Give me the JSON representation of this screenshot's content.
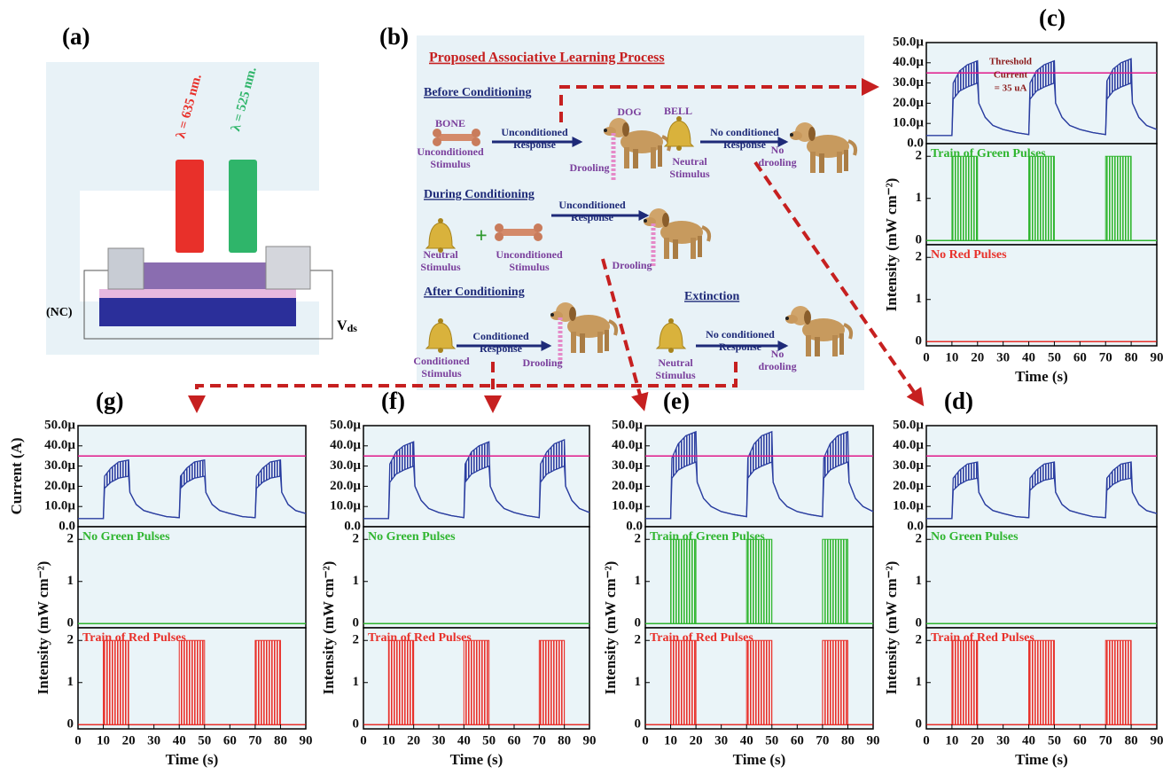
{
  "panel_labels": {
    "a": "(a)",
    "b": "(b)"
  },
  "schematic": {
    "wavelength_red": "λ = 635 nm.",
    "wavelength_green": "λ = 525 nm.",
    "nc_label": "(NC)",
    "v_label": "V",
    "v_subscript": "ds"
  },
  "diagram": {
    "title": "Proposed Associative Learning Process",
    "items": [
      [
        "Before Conditioning"
      ],
      [
        "BONE"
      ],
      [
        "Unconditioned",
        "Stimulus"
      ],
      [
        "Unconditioned",
        "Response"
      ],
      [
        "DOG"
      ],
      [
        "Drooling"
      ],
      [
        "BELL"
      ],
      [
        "Neutral",
        "Stimulus"
      ],
      [
        "No conditioned",
        "Response"
      ],
      [
        "No",
        "drooling"
      ],
      [
        "During Conditioning"
      ],
      [
        "Neutral",
        "Stimulus"
      ],
      [
        "+"
      ],
      [
        "Unconditioned",
        "Stimulus"
      ],
      [
        "Unconditioned",
        "Response"
      ],
      [
        "Drooling"
      ],
      [
        "After Conditioning"
      ],
      [
        "Conditioned",
        "Stimulus"
      ],
      [
        "Conditioned",
        "Response"
      ],
      [
        "Drooling"
      ],
      [
        "Extinction"
      ],
      [
        "Neutral",
        "Stimulus"
      ],
      [
        "No conditioned",
        "Response"
      ],
      [
        "No",
        "drooling"
      ]
    ]
  },
  "chart_data": [
    {
      "type": "pulse-stack",
      "label": "(c)",
      "xlim": [
        0,
        90
      ],
      "xticks": [
        0,
        10,
        20,
        30,
        40,
        50,
        60,
        70,
        80,
        90
      ],
      "xlabel": "Time (s)",
      "x": [
        0,
        10,
        10.5,
        13,
        16,
        20,
        20.5,
        23,
        26,
        30,
        35,
        40,
        40.5,
        43,
        46,
        50,
        50.5,
        53,
        56,
        60,
        65,
        70,
        70.5,
        73,
        76,
        80,
        80.5,
        83,
        86,
        90
      ],
      "current": {
        "color": "#2b3ea0",
        "ylim": [
          0,
          50
        ],
        "yticks": [
          {
            "value": 0,
            "label": "0.0"
          },
          {
            "value": 10,
            "label": "10.0µ"
          },
          {
            "value": 20,
            "label": "20.0µ"
          },
          {
            "value": 30,
            "label": "30.0µ"
          },
          {
            "value": 40,
            "label": "40.0µ"
          },
          {
            "value": 50,
            "label": "50.0µ"
          }
        ],
        "upper": [
          4,
          4,
          30,
          36,
          39,
          41,
          20,
          13,
          9,
          7,
          5.5,
          4.5,
          30,
          36,
          39,
          41,
          20,
          13,
          9,
          7,
          5.5,
          4.5,
          31,
          37,
          40,
          42,
          20,
          13,
          9,
          7
        ],
        "lower": [
          4,
          4,
          22,
          26,
          28,
          30,
          20,
          13,
          9,
          7,
          5.5,
          4.5,
          22,
          26,
          28,
          30,
          20,
          13,
          9,
          7,
          5.5,
          4.5,
          22,
          26,
          28,
          30,
          20,
          13,
          9,
          7
        ],
        "threshold": 35,
        "threshold_color": "#e0198a",
        "annotation": [
          "Threshold",
          "Current",
          "= 35 uA"
        ]
      },
      "intensity_ylim": [
        -0.1,
        2.3
      ],
      "intensity_yticks": [
        0,
        1,
        2
      ],
      "intensity_label": "Intensity (mW cm⁻²)",
      "green": {
        "label": "Train of Green Pulses",
        "color": "#2fb52f",
        "amplitude": 2,
        "baseline": 0,
        "windows": [
          [
            10,
            20
          ],
          [
            40,
            50
          ],
          [
            70,
            80
          ]
        ]
      },
      "red": {
        "label": "No Red Pulses",
        "color": "#e8302a",
        "amplitude": 2,
        "baseline": 0,
        "windows": []
      }
    },
    {
      "type": "pulse-stack",
      "label": "(d)",
      "xlim": [
        0,
        90
      ],
      "xticks": [
        0,
        10,
        20,
        30,
        40,
        50,
        60,
        70,
        80,
        90
      ],
      "xlabel": "Time (s)",
      "x": [
        0,
        10,
        10.5,
        13,
        16,
        20,
        20.5,
        23,
        26,
        30,
        35,
        40,
        40.5,
        43,
        46,
        50,
        50.5,
        53,
        56,
        60,
        65,
        70,
        70.5,
        73,
        76,
        80,
        80.5,
        83,
        86,
        90
      ],
      "current": {
        "color": "#2b3ea0",
        "ylim": [
          0,
          50
        ],
        "yticks": [
          {
            "value": 0,
            "label": "0.0"
          },
          {
            "value": 10,
            "label": "10.0µ"
          },
          {
            "value": 20,
            "label": "20.0µ"
          },
          {
            "value": 30,
            "label": "30.0µ"
          },
          {
            "value": 40,
            "label": "40.0µ"
          },
          {
            "value": 50,
            "label": "50.0µ"
          }
        ],
        "upper": [
          4,
          4,
          24,
          28,
          31,
          32,
          17,
          11,
          8,
          6.5,
          5,
          4.5,
          24,
          28,
          31,
          32,
          17,
          11,
          8,
          6.5,
          5,
          4.5,
          24,
          28,
          31,
          32,
          17,
          11,
          8,
          6.5
        ],
        "lower": [
          4,
          4,
          18,
          21,
          23,
          24,
          17,
          11,
          8,
          6.5,
          5,
          4.5,
          18,
          21,
          23,
          24,
          17,
          11,
          8,
          6.5,
          5,
          4.5,
          18,
          21,
          23,
          24,
          17,
          11,
          8,
          6.5
        ],
        "threshold": 35,
        "threshold_color": "#e0198a"
      },
      "intensity_ylim": [
        -0.1,
        2.3
      ],
      "intensity_yticks": [
        0,
        1,
        2
      ],
      "intensity_label": "Intensity (mW cm⁻²)",
      "green": {
        "label": "No Green Pulses",
        "color": "#2fb52f",
        "amplitude": 2,
        "baseline": 0,
        "windows": []
      },
      "red": {
        "label": "Train of Red Pulses",
        "color": "#e8302a",
        "amplitude": 2,
        "baseline": 0,
        "windows": [
          [
            10,
            20
          ],
          [
            40,
            50
          ],
          [
            70,
            80
          ]
        ]
      }
    },
    {
      "type": "pulse-stack",
      "label": "(e)",
      "xlim": [
        0,
        90
      ],
      "xticks": [
        0,
        10,
        20,
        30,
        40,
        50,
        60,
        70,
        80,
        90
      ],
      "xlabel": "Time (s)",
      "x": [
        0,
        10,
        10.5,
        13,
        16,
        20,
        20.5,
        23,
        26,
        30,
        35,
        40,
        40.5,
        43,
        46,
        50,
        50.5,
        53,
        56,
        60,
        65,
        70,
        70.5,
        73,
        76,
        80,
        80.5,
        83,
        86,
        90
      ],
      "current": {
        "color": "#2b3ea0",
        "ylim": [
          0,
          50
        ],
        "yticks": [
          {
            "value": 0,
            "label": "0.0"
          },
          {
            "value": 10,
            "label": "10.0µ"
          },
          {
            "value": 20,
            "label": "20.0µ"
          },
          {
            "value": 30,
            "label": "30.0µ"
          },
          {
            "value": 40,
            "label": "40.0µ"
          },
          {
            "value": 50,
            "label": "50.0µ"
          }
        ],
        "upper": [
          4,
          4,
          34,
          41,
          45,
          47,
          22,
          14,
          10,
          7.5,
          6,
          5,
          34,
          41,
          45,
          47,
          22,
          14,
          10,
          7.5,
          6,
          5,
          34,
          41,
          45,
          47,
          22,
          14,
          10,
          7.5
        ],
        "lower": [
          4,
          4,
          24,
          28,
          30,
          32,
          22,
          14,
          10,
          7.5,
          6,
          5,
          24,
          28,
          30,
          32,
          22,
          14,
          10,
          7.5,
          6,
          5,
          24,
          28,
          30,
          32,
          22,
          14,
          10,
          7.5
        ],
        "threshold": 35,
        "threshold_color": "#e0198a"
      },
      "intensity_ylim": [
        -0.1,
        2.3
      ],
      "intensity_yticks": [
        0,
        1,
        2
      ],
      "intensity_label": "Intensity (mW cm⁻²)",
      "green": {
        "label": "Train of Green Pulses",
        "color": "#2fb52f",
        "amplitude": 2,
        "baseline": 0,
        "windows": [
          [
            10,
            20
          ],
          [
            40,
            50
          ],
          [
            70,
            80
          ]
        ]
      },
      "red": {
        "label": "Train of Red Pulses",
        "color": "#e8302a",
        "amplitude": 2,
        "baseline": 0,
        "windows": [
          [
            10,
            20
          ],
          [
            40,
            50
          ],
          [
            70,
            80
          ]
        ]
      }
    },
    {
      "type": "pulse-stack",
      "label": "(f)",
      "xlim": [
        0,
        90
      ],
      "xticks": [
        0,
        10,
        20,
        30,
        40,
        50,
        60,
        70,
        80,
        90
      ],
      "xlabel": "Time (s)",
      "x": [
        0,
        10,
        10.5,
        13,
        16,
        20,
        20.5,
        23,
        26,
        30,
        35,
        40,
        40.5,
        43,
        46,
        50,
        50.5,
        53,
        56,
        60,
        65,
        70,
        70.5,
        73,
        76,
        80,
        80.5,
        83,
        86,
        90
      ],
      "current": {
        "color": "#2b3ea0",
        "ylim": [
          0,
          50
        ],
        "yticks": [
          {
            "value": 0,
            "label": "0.0"
          },
          {
            "value": 10,
            "label": "10.0µ"
          },
          {
            "value": 20,
            "label": "20.0µ"
          },
          {
            "value": 30,
            "label": "30.0µ"
          },
          {
            "value": 40,
            "label": "40.0µ"
          },
          {
            "value": 50,
            "label": "50.0µ"
          }
        ],
        "upper": [
          4,
          4,
          31,
          37,
          40,
          42,
          20,
          13,
          9,
          7,
          5.5,
          4.5,
          31,
          37,
          40,
          42,
          20,
          13,
          9,
          7,
          5.5,
          4.5,
          31,
          37,
          41,
          43,
          20,
          13,
          9,
          7
        ],
        "lower": [
          4,
          4,
          22,
          26,
          28,
          30,
          20,
          13,
          9,
          7,
          5.5,
          4.5,
          22,
          26,
          28,
          30,
          20,
          13,
          9,
          7,
          5.5,
          4.5,
          22,
          26,
          28,
          30,
          20,
          13,
          9,
          7
        ],
        "threshold": 35,
        "threshold_color": "#e0198a"
      },
      "intensity_ylim": [
        -0.1,
        2.3
      ],
      "intensity_yticks": [
        0,
        1,
        2
      ],
      "intensity_label": "Intensity (mW cm⁻²)",
      "green": {
        "label": "No Green Pulses",
        "color": "#2fb52f",
        "amplitude": 2,
        "baseline": 0,
        "windows": []
      },
      "red": {
        "label": "Train of Red Pulses",
        "color": "#e8302a",
        "amplitude": 2,
        "baseline": 0,
        "windows": [
          [
            10,
            20
          ],
          [
            40,
            50
          ],
          [
            70,
            80
          ]
        ]
      }
    },
    {
      "type": "pulse-stack",
      "label": "(g)",
      "xlim": [
        0,
        90
      ],
      "xticks": [
        0,
        10,
        20,
        30,
        40,
        50,
        60,
        70,
        80,
        90
      ],
      "xlabel": "Time (s)",
      "x": [
        0,
        10,
        10.5,
        13,
        16,
        20,
        20.5,
        23,
        26,
        30,
        35,
        40,
        40.5,
        43,
        46,
        50,
        50.5,
        53,
        56,
        60,
        65,
        70,
        70.5,
        73,
        76,
        80,
        80.5,
        83,
        86,
        90
      ],
      "current": {
        "color": "#2b3ea0",
        "ylim": [
          0,
          50
        ],
        "yticks": [
          {
            "value": 0,
            "label": "0.0"
          },
          {
            "value": 10,
            "label": "10.0µ"
          },
          {
            "value": 20,
            "label": "20.0µ"
          },
          {
            "value": 30,
            "label": "30.0µ"
          },
          {
            "value": 40,
            "label": "40.0µ"
          },
          {
            "value": 50,
            "label": "50.0µ"
          }
        ],
        "upper": [
          4,
          4,
          25,
          29,
          32,
          33,
          17,
          11,
          8,
          6.5,
          5,
          4.5,
          25,
          29,
          32,
          33,
          17,
          11,
          8,
          6.5,
          5,
          4.5,
          25,
          29,
          32,
          33,
          17,
          11,
          8,
          6.5
        ],
        "lower": [
          4,
          4,
          19,
          22,
          24,
          25,
          17,
          11,
          8,
          6.5,
          5,
          4.5,
          19,
          22,
          24,
          25,
          17,
          11,
          8,
          6.5,
          5,
          4.5,
          19,
          22,
          24,
          25,
          17,
          11,
          8,
          6.5
        ],
        "threshold": 35,
        "threshold_color": "#e0198a",
        "y_label": "Current (A)"
      },
      "intensity_ylim": [
        -0.1,
        2.3
      ],
      "intensity_yticks": [
        0,
        1,
        2
      ],
      "intensity_label": "Intensity (mW cm⁻²)",
      "green": {
        "label": "No Green Pulses",
        "color": "#2fb52f",
        "amplitude": 2,
        "baseline": 0,
        "windows": []
      },
      "red": {
        "label": "Train of Red Pulses",
        "color": "#e8302a",
        "amplitude": 2,
        "baseline": 0,
        "windows": [
          [
            10,
            20
          ],
          [
            40,
            50
          ],
          [
            70,
            80
          ]
        ]
      }
    }
  ]
}
